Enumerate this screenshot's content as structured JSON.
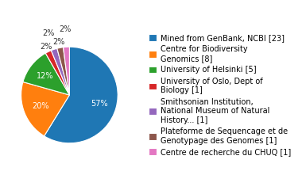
{
  "chart_data": {
    "type": "pie",
    "categories": [
      "Mined from GenBank, NCBI [23]",
      "Centre for Biodiversity\nGenomics [8]",
      "University of Helsinki [5]",
      "University of Oslo, Dept of\nBiology [1]",
      "Smithsonian Institution,\nNational Museum of Natural\nHistory... [1]",
      "Plateforme de Sequencage et de\nGenotypage des Genomes [1]",
      "Centre de recherche du CHUQ [1]"
    ],
    "values": [
      57,
      20,
      12,
      2,
      2,
      2,
      2
    ],
    "value_labels": [
      "57%",
      "20%",
      "12%",
      "2%",
      "2%",
      "2%",
      "2%"
    ],
    "data_labels": true,
    "legend": "center left"
  }
}
